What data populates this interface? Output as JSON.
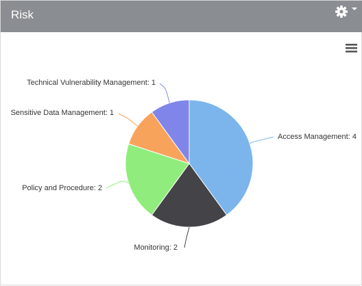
{
  "header": {
    "title": "Risk",
    "settings_icon": "gear-icon",
    "settings_caret_icon": "caret-down-icon"
  },
  "chart_menu_icon": "hamburger-menu-icon",
  "chart_data": {
    "type": "pie",
    "title": "",
    "start_angle_deg": 0,
    "direction": "clockwise",
    "legend": "none (data labels with connectors)",
    "slices": [
      {
        "label": "Access Management",
        "value": 4,
        "text": "Access Management: 4",
        "color": "#7cb5ec"
      },
      {
        "label": "Monitoring",
        "value": 2,
        "text": "Monitoring: 2",
        "color": "#434348"
      },
      {
        "label": "Policy and Procedure",
        "value": 2,
        "text": "Policy and Procedure: 2",
        "color": "#90ed7d"
      },
      {
        "label": "Sensitive Data Management",
        "value": 1,
        "text": "Sensitive Data Management: 1",
        "color": "#f7a35c"
      },
      {
        "label": "Technical Vulnerability Management",
        "value": 1,
        "text": "Technical Vulnerability Management: 1",
        "color": "#8085e9"
      }
    ]
  }
}
